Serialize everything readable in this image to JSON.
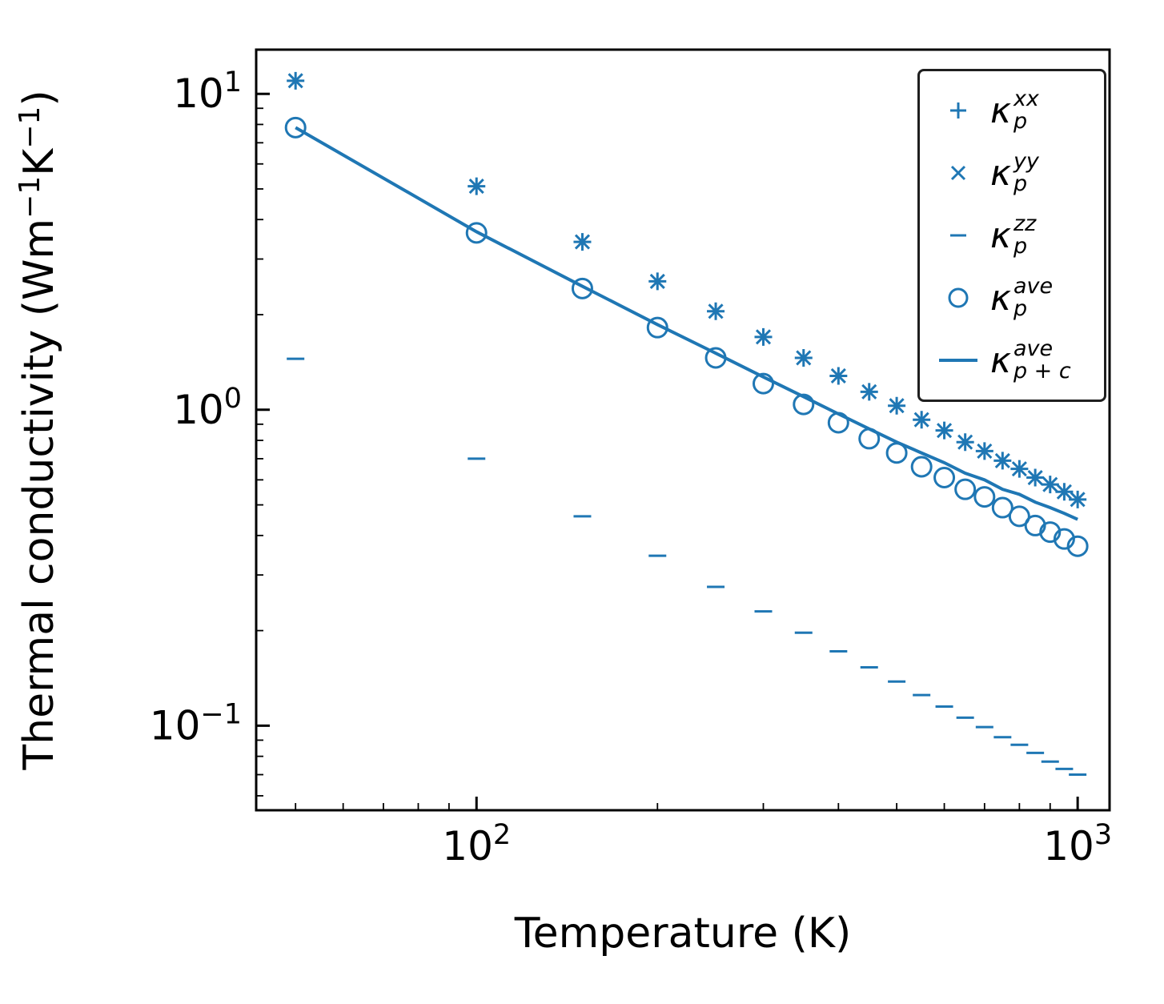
{
  "figure": {
    "background": "#ffffff"
  },
  "chart_data": {
    "type": "scatter",
    "title": "",
    "xlabel": "Temperature (K)",
    "ylabel": "Thermal conductivity (Wm⁻¹K⁻¹)",
    "ylabel_parts": [
      {
        "text": "Thermal conductivity (Wm"
      },
      {
        "text": "−1",
        "sup": true
      },
      {
        "text": "K"
      },
      {
        "text": "−1",
        "sup": true
      },
      {
        "text": ")"
      }
    ],
    "x_scale": "log",
    "y_scale": "log",
    "xlim": [
      43,
      1130
    ],
    "ylim": [
      0.054,
      13.8
    ],
    "grid": false,
    "accent_color": "#1f77b4",
    "frame_color": "#000000",
    "x_major_ticks": [
      {
        "value": 100,
        "label_base": "10",
        "label_exp": "2"
      },
      {
        "value": 1000,
        "label_base": "10",
        "label_exp": "3"
      }
    ],
    "y_major_ticks": [
      {
        "value": 10,
        "label_base": "10",
        "label_exp": "1"
      },
      {
        "value": 1,
        "label_base": "10",
        "label_exp": "0"
      },
      {
        "value": 0.1,
        "label_base": "10",
        "label_exp": "−1"
      }
    ],
    "x": [
      50,
      100,
      150,
      200,
      250,
      300,
      350,
      400,
      450,
      500,
      550,
      600,
      650,
      700,
      750,
      800,
      850,
      900,
      950,
      1000
    ],
    "series": [
      {
        "id": "kappa-p-xx",
        "marker": "plus",
        "legend": {
          "base": "κ",
          "sup": "xx",
          "sub": "p"
        },
        "values": [
          11.0,
          5.1,
          3.4,
          2.55,
          2.05,
          1.7,
          1.46,
          1.28,
          1.14,
          1.03,
          0.93,
          0.86,
          0.79,
          0.74,
          0.69,
          0.65,
          0.61,
          0.58,
          0.55,
          0.52
        ]
      },
      {
        "id": "kappa-p-yy",
        "marker": "x",
        "legend": {
          "base": "κ",
          "sup": "yy",
          "sub": "p"
        },
        "values": [
          11.0,
          5.1,
          3.4,
          2.55,
          2.05,
          1.7,
          1.46,
          1.28,
          1.14,
          1.03,
          0.93,
          0.86,
          0.79,
          0.74,
          0.69,
          0.65,
          0.61,
          0.58,
          0.55,
          0.52
        ]
      },
      {
        "id": "kappa-p-zz",
        "marker": "hline",
        "legend": {
          "base": "κ",
          "sup": "zz",
          "sub": "p"
        },
        "values": [
          1.45,
          0.7,
          0.46,
          0.345,
          0.275,
          0.23,
          0.197,
          0.172,
          0.153,
          0.138,
          0.125,
          0.115,
          0.106,
          0.099,
          0.092,
          0.087,
          0.082,
          0.077,
          0.073,
          0.07
        ]
      },
      {
        "id": "kappa-p-ave",
        "marker": "circle",
        "legend": {
          "base": "κ",
          "sup": "ave",
          "sub": "p"
        },
        "values": [
          7.82,
          3.63,
          2.42,
          1.82,
          1.46,
          1.21,
          1.04,
          0.91,
          0.81,
          0.73,
          0.66,
          0.61,
          0.56,
          0.53,
          0.49,
          0.46,
          0.43,
          0.41,
          0.39,
          0.37
        ]
      },
      {
        "id": "kappa-p-plus-c-ave",
        "marker": "line",
        "legend": {
          "base": "κ",
          "sup": "ave",
          "sub": "p + c"
        },
        "values": [
          7.82,
          3.66,
          2.46,
          1.86,
          1.51,
          1.27,
          1.1,
          0.97,
          0.87,
          0.79,
          0.73,
          0.68,
          0.63,
          0.6,
          0.56,
          0.54,
          0.51,
          0.49,
          0.47,
          0.45
        ]
      }
    ],
    "legend_position": "upper right"
  }
}
